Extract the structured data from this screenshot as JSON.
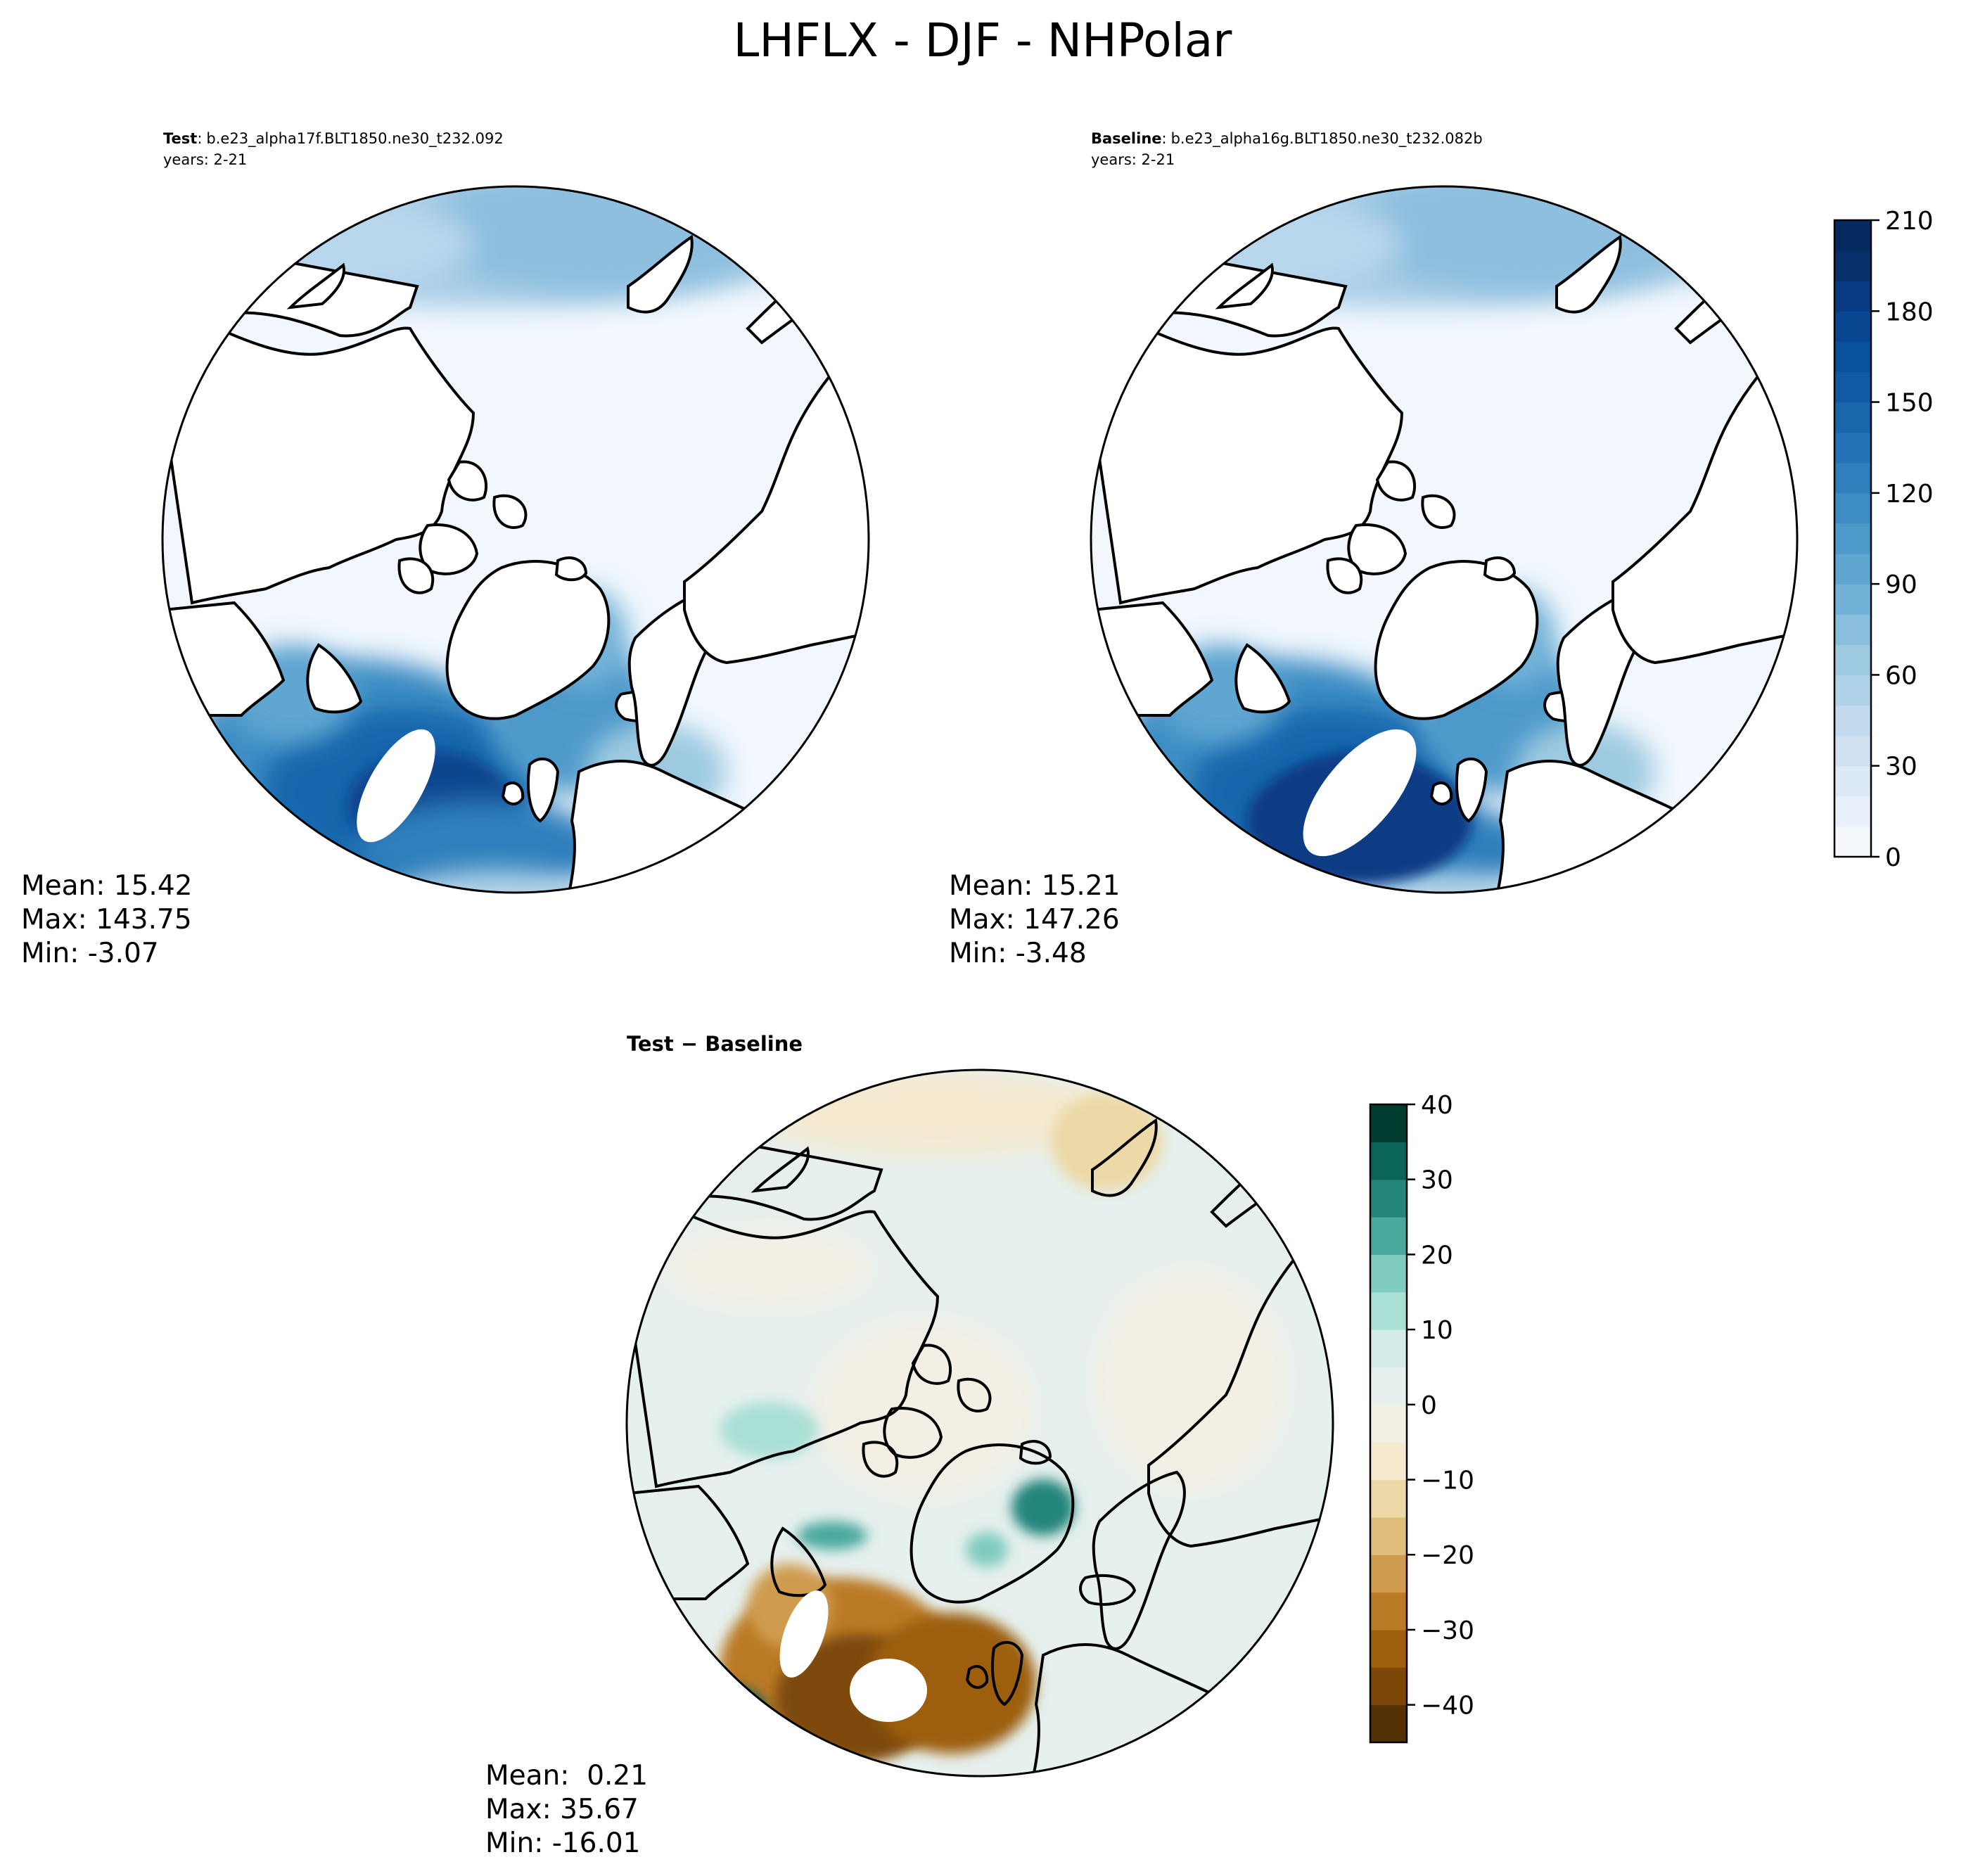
{
  "figure": {
    "title": "LHFLX - DJF - NHPolar"
  },
  "chart_data": [
    {
      "type": "heatmap",
      "projection": "north-polar-stereographic",
      "title_label": "Test",
      "title_sep": ":",
      "case_name": "b.e23_alpha17f.BLT1850.ne30_t232.092",
      "years": "years: 2-21",
      "stats": {
        "mean": "Mean: 15.42",
        "max": "Max: 143.75",
        "min": "Min: -3.07"
      },
      "colormap": "Blues",
      "colorbar": "shared-right"
    },
    {
      "type": "heatmap",
      "projection": "north-polar-stereographic",
      "title_label": "Baseline",
      "title_sep": ":",
      "case_name": "b.e23_alpha16g.BLT1850.ne30_t232.082b",
      "years": "years: 2-21",
      "stats": {
        "mean": "Mean: 15.21",
        "max": "Max: 147.26",
        "min": "Min: -3.48"
      },
      "colormap": "Blues",
      "colorbar": {
        "ticks": [
          "0",
          "30",
          "60",
          "90",
          "120",
          "150",
          "180",
          "210"
        ],
        "range": [
          0,
          210
        ],
        "levels": 21,
        "colors": [
          "#f4f9fe",
          "#e8f1fa",
          "#dce9f6",
          "#d0e1f2",
          "#c2d9ee",
          "#b0d2e8",
          "#9ecae1",
          "#89bedc",
          "#73b2d8",
          "#5fa6d1",
          "#4d99ca",
          "#3d8dc4",
          "#2f7fbc",
          "#2373b6",
          "#1966ad",
          "#0f5aa3",
          "#08519c",
          "#084691",
          "#083b84",
          "#08306b",
          "#062a5f"
        ]
      }
    },
    {
      "type": "heatmap",
      "projection": "north-polar-stereographic",
      "title": "Test − Baseline",
      "stats": {
        "mean": "Mean:  0.21",
        "max": "Max: 35.67",
        "min": "Min: -16.01"
      },
      "colormap": "BrBG",
      "colorbar": {
        "ticks": [
          "40",
          "30",
          "20",
          "10",
          "0",
          "−10",
          "−20",
          "−30",
          "−40"
        ],
        "range": [
          -45,
          40
        ],
        "levels": 17,
        "colors": [
          "#543005",
          "#7d4807",
          "#9d5f0e",
          "#bb7a25",
          "#cf9c50",
          "#dfbe7c",
          "#ecd9a7",
          "#f5ead0",
          "#f3efe5",
          "#e6f0ee",
          "#d3ece7",
          "#aadfd6",
          "#80ccbf",
          "#4aa99f",
          "#24857c",
          "#0a6459",
          "#003c30"
        ]
      }
    }
  ],
  "colors": {
    "land": "#ffffff",
    "coast": "#000000",
    "ocean_low": "#f1f7fd"
  }
}
